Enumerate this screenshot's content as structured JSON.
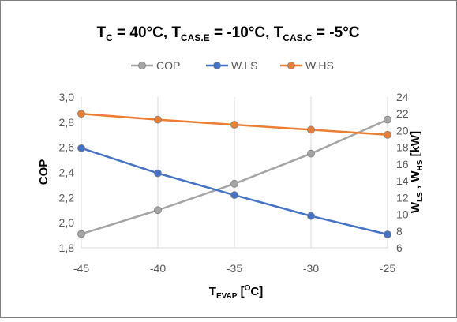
{
  "chart_data": {
    "type": "line",
    "title": {
      "t1": "T",
      "t1_sub": "C",
      "t2": " = 40°C, T",
      "t2_sub": "CAS.E",
      "t3": " = -10°C, T",
      "t3_sub": "CAS.C",
      "t4": " = -5°C"
    },
    "xlabel": {
      "main": "T",
      "sub": "EVAP",
      "unit_open": " [",
      "unit_sup": "O",
      "unit_close": "C]"
    },
    "ylabel_left": "COP",
    "ylabel_right": {
      "w1": "W",
      "s1": "LS",
      "mid": " , W",
      "s2": "HS",
      "unit": " [kW]"
    },
    "x": [
      -45,
      -40,
      -35,
      -30,
      -25
    ],
    "x_ticks": [
      "-45",
      "-40",
      "-35",
      "-30",
      "-25"
    ],
    "ylim_left": [
      1.8,
      3.0
    ],
    "y_ticks_left": [
      "1,8",
      "2,0",
      "2,2",
      "2,4",
      "2,6",
      "2,8",
      "3,0"
    ],
    "ylim_right": [
      6,
      24
    ],
    "y_ticks_right": [
      "6",
      "8",
      "10",
      "12",
      "14",
      "16",
      "18",
      "20",
      "22",
      "24"
    ],
    "grid": "vertical",
    "legend_position": "top",
    "series": [
      {
        "name": "COP",
        "axis": "left",
        "color": "#a5a5a5",
        "values": [
          1.91,
          2.1,
          2.31,
          2.55,
          2.82
        ]
      },
      {
        "name": "W.LS",
        "axis": "right",
        "color": "#4472c4",
        "values": [
          17.9,
          14.9,
          12.3,
          9.8,
          7.6
        ]
      },
      {
        "name": "W.HS",
        "axis": "right",
        "color": "#ed7d31",
        "values": [
          22.0,
          21.3,
          20.7,
          20.1,
          19.5
        ]
      }
    ]
  }
}
